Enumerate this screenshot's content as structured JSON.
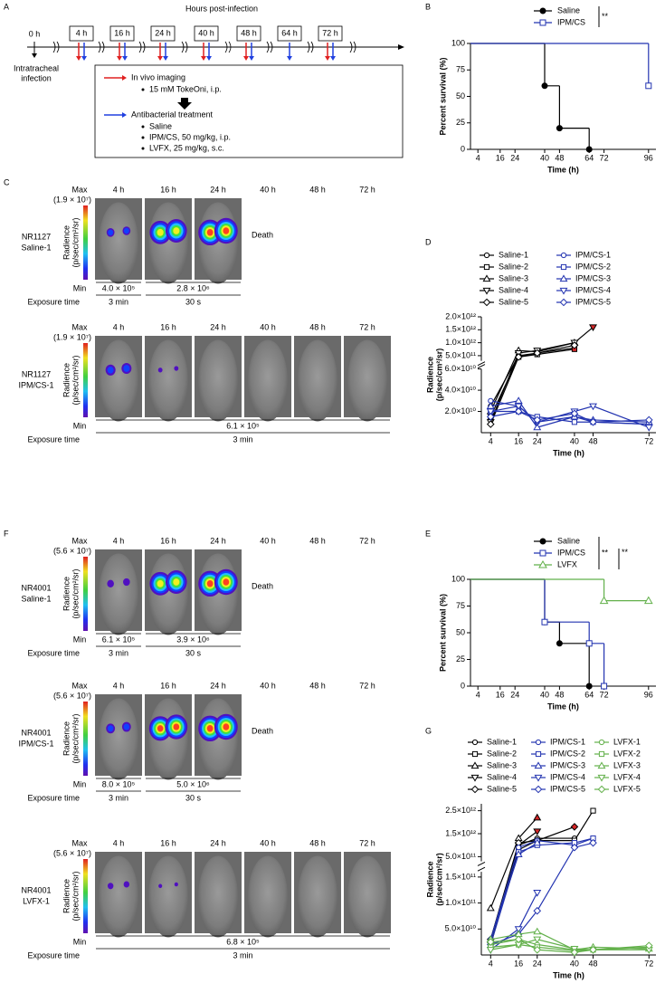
{
  "panel_labels": [
    "A",
    "B",
    "C",
    "D",
    "E",
    "F",
    "G"
  ],
  "timeline": {
    "axis_title": "Hours post-infection",
    "start_label": "0 h",
    "infection_label": [
      "Intratracheal",
      "infection"
    ],
    "timepoints": [
      {
        "label": "4 h",
        "imaging": true,
        "treatment": true
      },
      {
        "label": "16 h",
        "imaging": true,
        "treatment": true
      },
      {
        "label": "24 h",
        "imaging": true,
        "treatment": true
      },
      {
        "label": "40 h",
        "imaging": true,
        "treatment": true
      },
      {
        "label": "48 h",
        "imaging": true,
        "treatment": true
      },
      {
        "label": "64 h",
        "imaging": false,
        "treatment": true
      },
      {
        "label": "72 h",
        "imaging": true,
        "treatment": true
      }
    ],
    "box": {
      "imaging_title": "In vivo imaging",
      "imaging_items": [
        "15 mM TokeOni, i.p."
      ],
      "treatment_title": "Antibacterial treatment",
      "treatment_items": [
        "Saline",
        "IPM/CS, 50 mg/kg, i.p.",
        "LVFX, 25 mg/kg, s.c."
      ]
    }
  },
  "imaging_C": {
    "timepoints": [
      "4 h",
      "16 h",
      "24 h",
      "40 h",
      "48 h",
      "72 h"
    ],
    "rows": [
      {
        "id": [
          "NR1127",
          "Saline-1"
        ],
        "max": "Max",
        "max_value": "(1.9 × 10⁷)",
        "min": "Min",
        "scale_label": [
          "Radience",
          "(p/sec/cm²/sr)"
        ],
        "death": "Death",
        "min_values": [
          "4.0 × 10⁵",
          "2.8 × 10⁶"
        ],
        "exposure_label": "Exposure time",
        "exposures": [
          "3 min",
          "30 s"
        ]
      },
      {
        "id": [
          "NR1127",
          "IPM/CS-1"
        ],
        "max": "Max",
        "max_value": "(1.9 × 10⁷)",
        "min": "Min",
        "scale_label": [
          "Radience",
          "(p/sec/cm²/sr)"
        ],
        "min_values": [
          "6.1 × 10⁵"
        ],
        "exposure_label": "Exposure time",
        "exposures": [
          "3 min"
        ]
      }
    ]
  },
  "imaging_F": {
    "timepoints": [
      "4 h",
      "16 h",
      "24 h",
      "40 h",
      "48 h",
      "72 h"
    ],
    "rows": [
      {
        "id": [
          "NR4001",
          "Saline-1"
        ],
        "max": "Max",
        "max_value": "(5.6 × 10⁷)",
        "min": "Min",
        "scale_label": [
          "Radience",
          "(p/sec/cm²/sr)"
        ],
        "death": "Death",
        "min_values": [
          "6.1 × 10⁵",
          "3.9 × 10⁶"
        ],
        "exposure_label": "Exposure time",
        "exposures": [
          "3 min",
          "30 s"
        ]
      },
      {
        "id": [
          "NR4001",
          "IPM/CS-1"
        ],
        "max": "Max",
        "max_value": "(5.6 × 10⁷)",
        "min": "Min",
        "scale_label": [
          "Radience",
          "(p/sec/cm²/sr)"
        ],
        "death": "Death",
        "min_values": [
          "8.0 × 10⁵",
          "5.0 × 10⁶"
        ],
        "exposure_label": "Exposure time",
        "exposures": [
          "3 min",
          "30 s"
        ]
      },
      {
        "id": [
          "NR4001",
          "LVFX-1"
        ],
        "max": "Max",
        "max_value": "(5.6 × 10⁷)",
        "min": "Min",
        "scale_label": [
          "Radience",
          "(p/sec/cm²/sr)"
        ],
        "min_values": [
          "6.8 × 10⁵"
        ],
        "exposure_label": "Exposure time",
        "exposures": [
          "3 min"
        ]
      }
    ]
  },
  "chart_data": [
    {
      "type": "survival",
      "ylabel": "Percent survival (%)",
      "xlabel": "Time (h)",
      "xlim": [
        0,
        100
      ],
      "xticks": [
        4,
        16,
        24,
        40,
        48,
        64,
        72,
        96
      ],
      "ylim": [
        0,
        100
      ],
      "yticks": [
        0,
        25,
        50,
        75,
        100
      ],
      "series": [
        {
          "name": "Saline",
          "color": "#000000",
          "marker": "circle",
          "filled": true,
          "x": [
            0,
            40,
            48,
            64
          ],
          "values": [
            100,
            60,
            20,
            0
          ]
        },
        {
          "name": "IPM/CS",
          "color": "#2233b0",
          "marker": "square",
          "filled": false,
          "x": [
            0,
            96
          ],
          "values": [
            100,
            60
          ]
        }
      ],
      "significance": [
        "**"
      ]
    },
    {
      "type": "radiance",
      "ylabel": [
        "Radience",
        "(p/sec/cm²/sr)"
      ],
      "xlabel": "Time (h)",
      "x": [
        4,
        16,
        24,
        40,
        48,
        72
      ],
      "xlim": [
        0,
        75
      ],
      "xticks": [
        4,
        16,
        24,
        40,
        48,
        72
      ],
      "ylim": [
        0,
        2000000000000
      ],
      "y_break": [
        60000000000,
        300000000000
      ],
      "yticks": [
        {
          "value": 20000000000,
          "label": "2.0×10¹⁰"
        },
        {
          "value": 40000000000,
          "label": "4.0×10¹⁰"
        },
        {
          "value": 60000000000,
          "label": "6.0×10¹⁰"
        },
        {
          "value": 500000000000,
          "label": "5.0×10¹¹"
        },
        {
          "value": 1000000000000,
          "label": "1.0×10¹²"
        },
        {
          "value": 1500000000000,
          "label": "1.5×10¹²"
        },
        {
          "value": 2000000000000,
          "label": "2.0×10¹²"
        }
      ],
      "series": [
        {
          "name": "Saline-1",
          "color": "#000000",
          "values": [
            25000000000,
            500000000000,
            600000000000,
            800000000000,
            null,
            null
          ]
        },
        {
          "name": "Saline-2",
          "color": "#000000",
          "last_marker_color": "#d62728",
          "values": [
            15000000000,
            450000000000,
            550000000000,
            750000000000,
            null,
            null
          ]
        },
        {
          "name": "Saline-3",
          "color": "#000000",
          "values": [
            20000000000,
            700000000000,
            650000000000,
            1000000000000,
            null,
            null
          ]
        },
        {
          "name": "Saline-4",
          "color": "#000000",
          "last_marker_color": "#d62728",
          "values": [
            10000000000,
            600000000000,
            700000000000,
            1000000000000,
            1600000000000,
            null
          ]
        },
        {
          "name": "Saline-5",
          "color": "#000000",
          "values": [
            8000000000,
            450000000000,
            600000000000,
            900000000000,
            null,
            null
          ]
        },
        {
          "name": "IPM/CS-1",
          "color": "#2233b0",
          "values": [
            30000000000,
            25000000000,
            10000000000,
            15000000000,
            10000000000,
            8000000000
          ]
        },
        {
          "name": "IPM/CS-2",
          "color": "#2233b0",
          "values": [
            20000000000,
            20000000000,
            15000000000,
            10000000000,
            10000000000,
            8000000000
          ]
        },
        {
          "name": "IPM/CS-3",
          "color": "#2233b0",
          "values": [
            25000000000,
            30000000000,
            5000000000,
            15000000000,
            12000000000,
            10000000000
          ]
        },
        {
          "name": "IPM/CS-4",
          "color": "#2233b0",
          "values": [
            20000000000,
            25000000000,
            10000000000,
            20000000000,
            25000000000,
            5000000000
          ]
        },
        {
          "name": "IPM/CS-5",
          "color": "#2233b0",
          "values": [
            15000000000,
            20000000000,
            12000000000,
            18000000000,
            10000000000,
            12000000000
          ]
        }
      ]
    },
    {
      "type": "survival",
      "ylabel": "Percent survival (%)",
      "xlabel": "Time (h)",
      "xlim": [
        0,
        100
      ],
      "xticks": [
        4,
        16,
        24,
        40,
        48,
        64,
        72,
        96
      ],
      "ylim": [
        0,
        100
      ],
      "yticks": [
        0,
        25,
        50,
        75,
        100
      ],
      "series": [
        {
          "name": "Saline",
          "color": "#000000",
          "marker": "circle",
          "filled": true,
          "x": [
            0,
            40,
            48,
            64
          ],
          "values": [
            100,
            60,
            40,
            0
          ]
        },
        {
          "name": "IPM/CS",
          "color": "#2233b0",
          "marker": "square",
          "filled": false,
          "x": [
            0,
            40,
            64,
            72
          ],
          "values": [
            100,
            60,
            40,
            0
          ]
        },
        {
          "name": "LVFX",
          "color": "#62b04a",
          "marker": "triangle-up",
          "filled": false,
          "x": [
            0,
            72,
            96
          ],
          "values": [
            100,
            80,
            80
          ]
        }
      ],
      "significance": [
        "**",
        "**"
      ]
    },
    {
      "type": "radiance",
      "ylabel": [
        "Radience",
        "(p/sec/cm²/sr)"
      ],
      "xlabel": "Time (h)",
      "x": [
        4,
        16,
        24,
        40,
        48,
        72
      ],
      "xlim": [
        0,
        75
      ],
      "xticks": [
        4,
        16,
        24,
        40,
        48,
        72
      ],
      "ylim": [
        0,
        2800000000000
      ],
      "y_break": [
        160000000000,
        300000000000
      ],
      "yticks": [
        {
          "value": 50000000000,
          "label": "5.0×10¹⁰"
        },
        {
          "value": 100000000000,
          "label": "1.0×10¹¹"
        },
        {
          "value": 150000000000,
          "label": "1.5×10¹¹"
        },
        {
          "value": 500000000000,
          "label": "5.0×10¹¹"
        },
        {
          "value": 1500000000000,
          "label": "1.5×10¹²"
        },
        {
          "value": 2500000000000,
          "label": "2.5×10¹²"
        }
      ],
      "series": [
        {
          "name": "Saline-1",
          "color": "#000000",
          "values": [
            30000000000,
            1000000000000,
            1300000000000,
            1300000000000,
            null,
            null
          ]
        },
        {
          "name": "Saline-2",
          "color": "#000000",
          "values": [
            20000000000,
            800000000000,
            1200000000000,
            1200000000000,
            2500000000000,
            null
          ]
        },
        {
          "name": "Saline-3",
          "color": "#000000",
          "last_marker_color": "#d62728",
          "values": [
            90000000000,
            1300000000000,
            2200000000000,
            null,
            null,
            null
          ]
        },
        {
          "name": "Saline-4",
          "color": "#000000",
          "last_marker_color": "#d62728",
          "values": [
            20000000000,
            1000000000000,
            1600000000000,
            null,
            null,
            null
          ]
        },
        {
          "name": "Saline-5",
          "color": "#000000",
          "last_marker_color": "#d62728",
          "values": [
            30000000000,
            1100000000000,
            1200000000000,
            1800000000000,
            null,
            null
          ]
        },
        {
          "name": "IPM/CS-1",
          "color": "#2233b0",
          "values": [
            30000000000,
            900000000000,
            1200000000000,
            1000000000000,
            1300000000000,
            null
          ]
        },
        {
          "name": "IPM/CS-2",
          "color": "#2233b0",
          "values": [
            20000000000,
            700000000000,
            1000000000000,
            1100000000000,
            1300000000000,
            null
          ]
        },
        {
          "name": "IPM/CS-3",
          "color": "#2233b0",
          "values": [
            30000000000,
            600000000000,
            1100000000000,
            null,
            null,
            null
          ]
        },
        {
          "name": "IPM/CS-4",
          "color": "#2233b0",
          "values": [
            10000000000,
            50000000000,
            120000000000,
            null,
            null,
            null
          ]
        },
        {
          "name": "IPM/CS-5",
          "color": "#2233b0",
          "values": [
            20000000000,
            40000000000,
            85000000000,
            900000000000,
            1100000000000,
            null
          ]
        },
        {
          "name": "LVFX-1",
          "color": "#62b04a",
          "values": [
            20000000000,
            30000000000,
            20000000000,
            10000000000,
            10000000000,
            15000000000
          ]
        },
        {
          "name": "LVFX-2",
          "color": "#62b04a",
          "values": [
            15000000000,
            20000000000,
            15000000000,
            8000000000,
            10000000000,
            15000000000
          ]
        },
        {
          "name": "LVFX-3",
          "color": "#62b04a",
          "values": [
            30000000000,
            40000000000,
            45000000000,
            10000000000,
            15000000000,
            12000000000
          ]
        },
        {
          "name": "LVFX-4",
          "color": "#62b04a",
          "values": [
            10000000000,
            20000000000,
            30000000000,
            12000000000,
            10000000000,
            10000000000
          ]
        },
        {
          "name": "LVFX-5",
          "color": "#62b04a",
          "values": [
            25000000000,
            30000000000,
            10000000000,
            5000000000,
            10000000000,
            18000000000
          ]
        }
      ]
    }
  ]
}
